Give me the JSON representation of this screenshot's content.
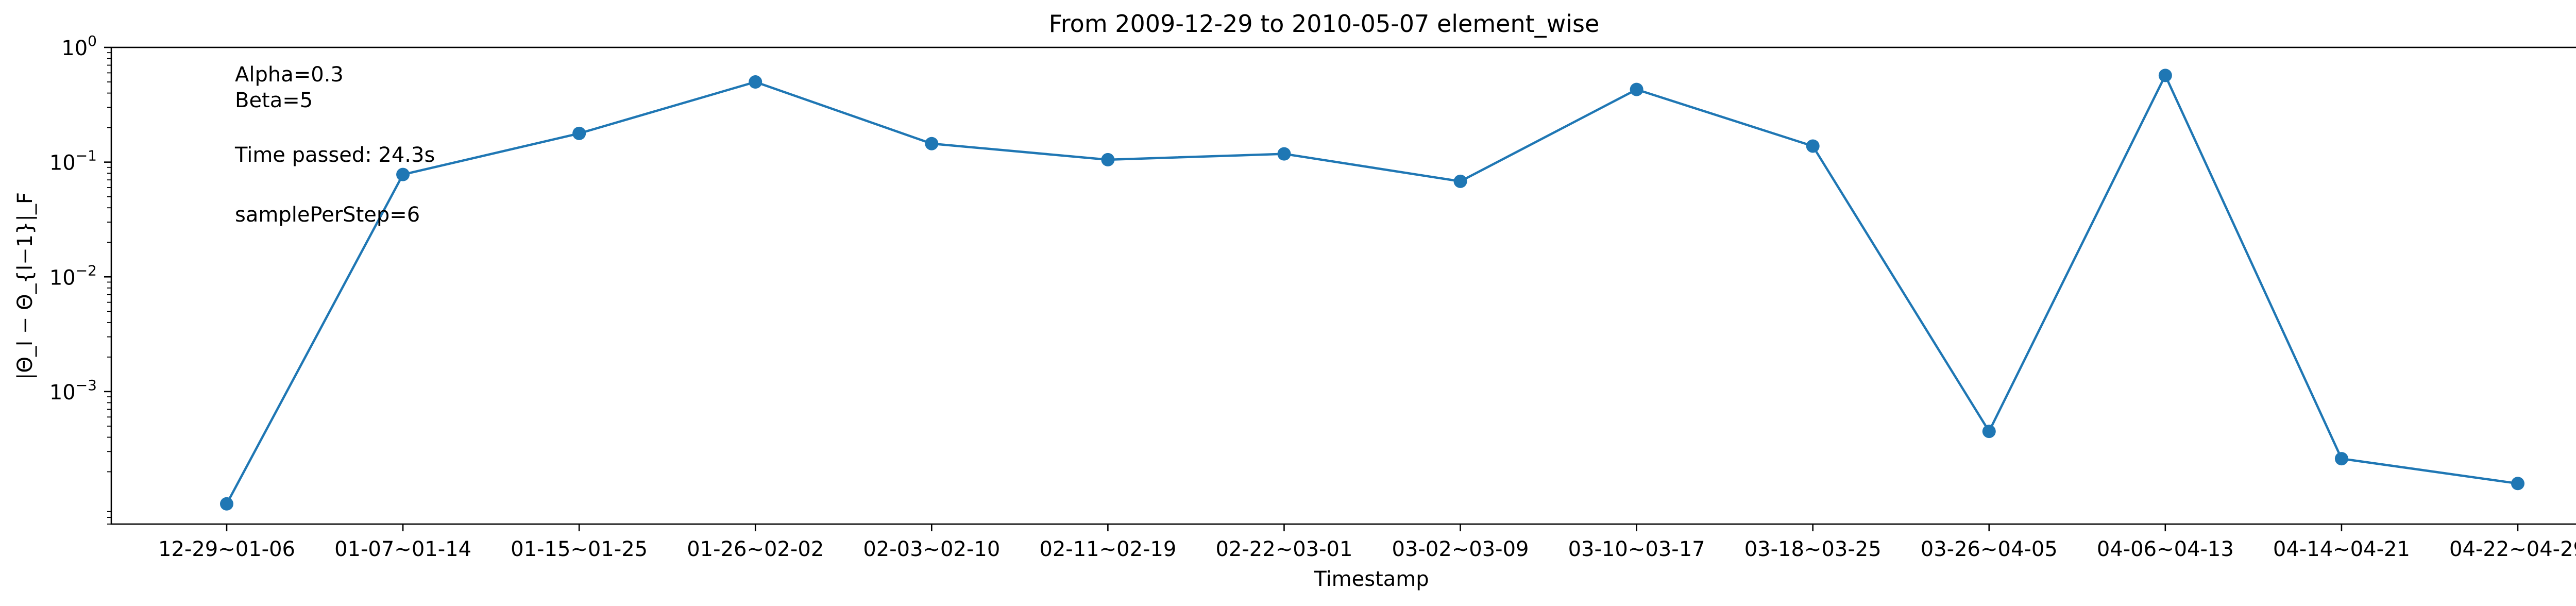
{
  "chart_data": {
    "type": "line",
    "title": "From 2009-12-29 to 2010-05-07 element_wise",
    "xlabel": "Timestamp",
    "ylabel": "|Θ_l − Θ_{l−1}|_F",
    "yscale": "log",
    "ylim": [
      7e-05,
      1
    ],
    "y_ticks": [
      {
        "value": 1,
        "label": "10",
        "exp": "0"
      },
      {
        "value": 0.1,
        "label": "10",
        "exp": "−1"
      },
      {
        "value": 0.01,
        "label": "10",
        "exp": "−2"
      },
      {
        "value": 0.001,
        "label": "10",
        "exp": "−3"
      }
    ],
    "grid": false,
    "color": "#1f77b4",
    "categories": [
      "12-29~01-06",
      "01-07~01-14",
      "01-15~01-25",
      "01-26~02-02",
      "02-03~02-10",
      "02-11~02-19",
      "02-22~03-01",
      "03-02~03-09",
      "03-10~03-17",
      "03-18~03-25",
      "03-26~04-05",
      "04-06~04-13",
      "04-14~04-21",
      "04-22~04-29"
    ],
    "values": [
      0.000105,
      0.078,
      0.178,
      0.5,
      0.145,
      0.105,
      0.118,
      0.068,
      0.43,
      0.138,
      0.00045,
      0.57,
      0.00026,
      0.000158
    ],
    "annotations": [
      "Alpha=0.3",
      "Beta=5",
      "Time passed: 24.3s",
      "samplePerStep=6"
    ]
  }
}
